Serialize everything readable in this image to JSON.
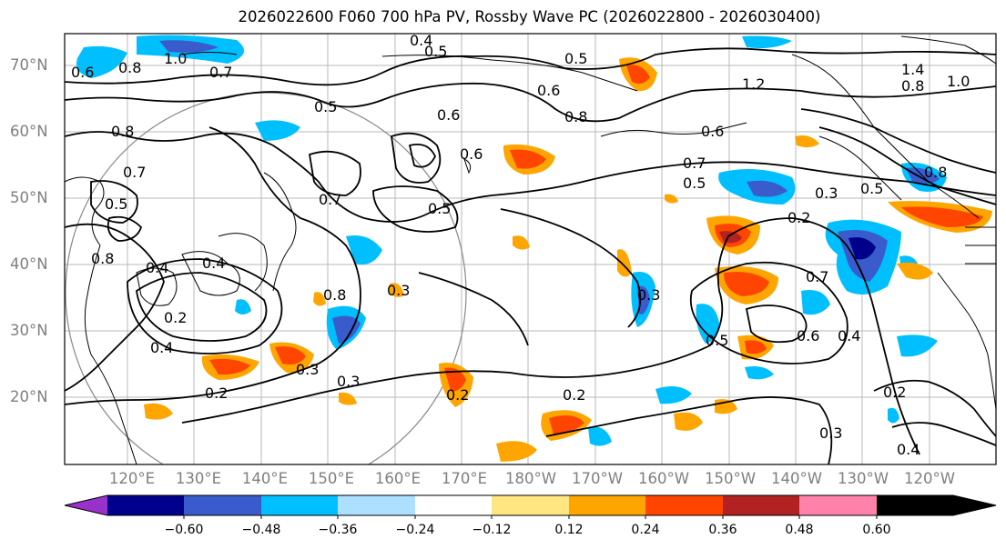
{
  "title": "2026022600 F060 700 hPa PV, Rossby Wave PC (2026022800 - 2026030400)",
  "lat_labels": [
    "70°N",
    "60°N",
    "50°N",
    "40°N",
    "30°N",
    "20°N"
  ],
  "lon_labels": [
    "120°E",
    "130°E",
    "140°E",
    "150°E",
    "160°E",
    "170°E",
    "180°W",
    "170°W",
    "160°W",
    "150°W",
    "140°W",
    "130°W",
    "120°W"
  ],
  "colorbar": {
    "ticks": [
      "−0.60",
      "−0.48",
      "−0.36",
      "−0.24",
      "−0.12",
      "0.12",
      "0.24",
      "0.36",
      "0.48",
      "0.60"
    ],
    "colors": [
      "#9932CC",
      "#00008B",
      "#3A5BCB",
      "#00BFFF",
      "#ADDFFF",
      "#FFFFFF",
      "#FFE680",
      "#FFA500",
      "#FF4500",
      "#B22222",
      "#FF82AB"
    ]
  },
  "contour_labels": [
    "0.6",
    "0.8",
    "1.0",
    "0.7",
    "0.4",
    "0.5",
    "0.6",
    "0.5",
    "0.6",
    "0.8",
    "1.2",
    "1.4",
    "0.8",
    "1.0",
    "0.8",
    "0.5",
    "0.7",
    "0.5",
    "0.6",
    "0.7",
    "0.5",
    "0.6",
    "0.5",
    "0.7",
    "0.3",
    "0.2",
    "0.4",
    "0.4",
    "0.2",
    "0.4",
    "0.2",
    "0.3",
    "0.8",
    "0.3",
    "0.3",
    "0.2",
    "0.3",
    "0.5",
    "0.7",
    "0.6",
    "0.4",
    "0.2",
    "0.3",
    "0.4",
    "0.8",
    "0.5",
    "0.2",
    "0.8"
  ]
}
